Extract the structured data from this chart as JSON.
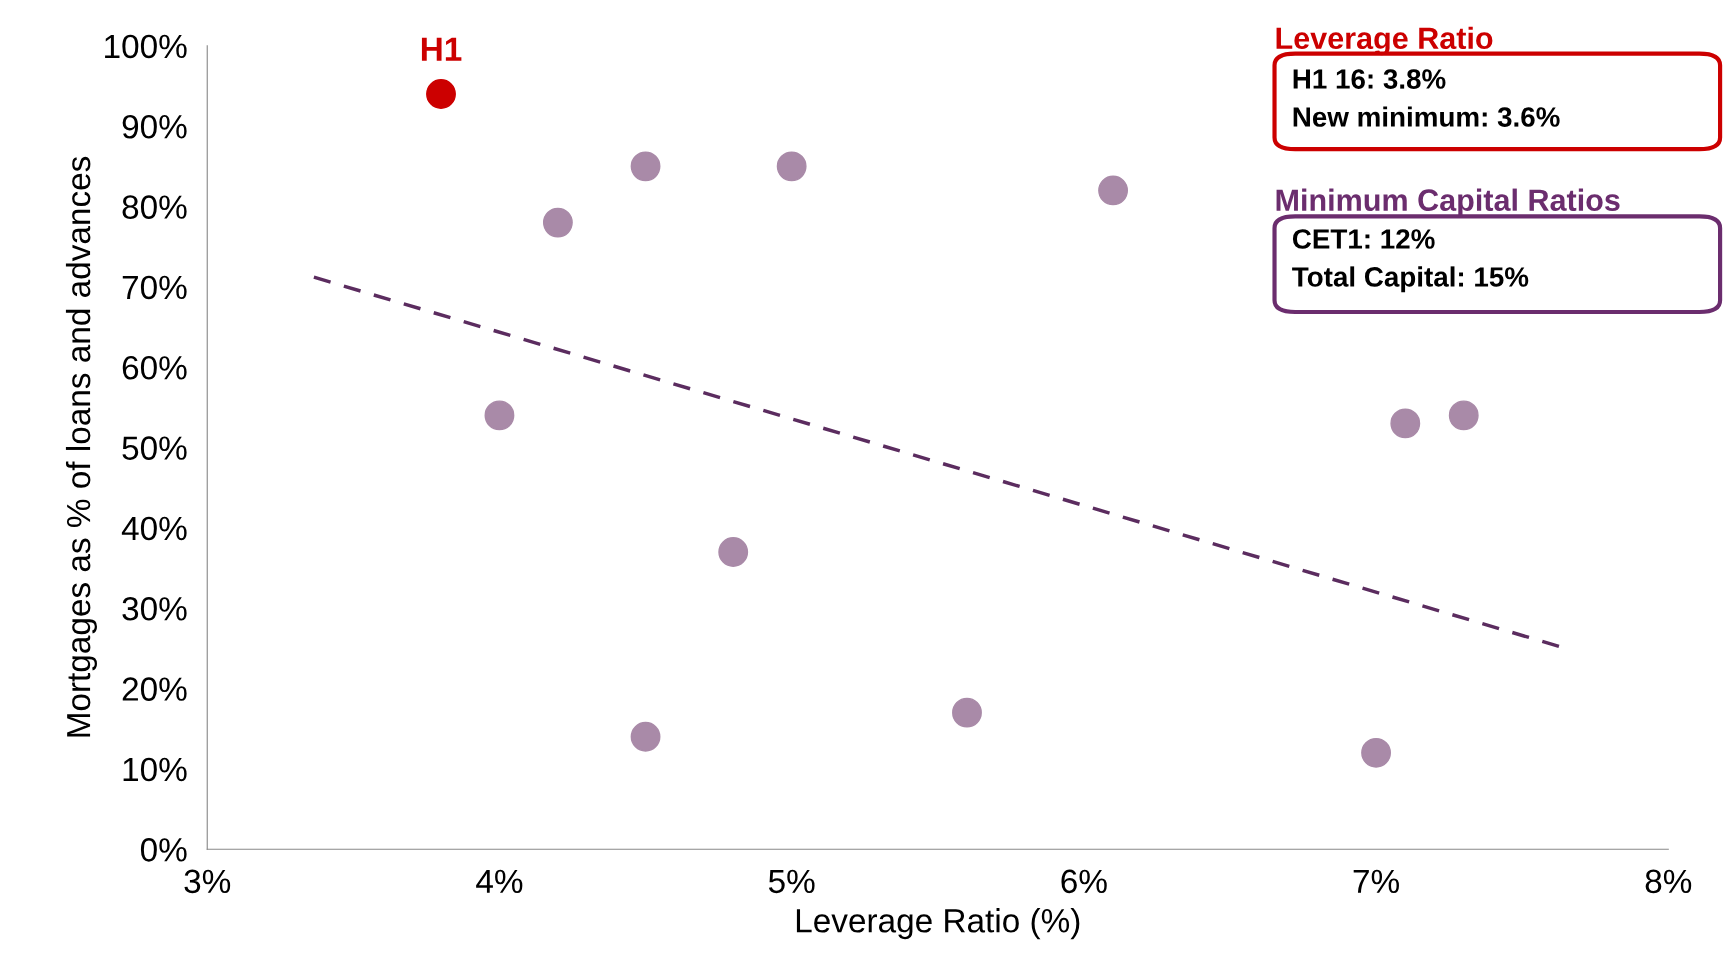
{
  "chart_data": {
    "type": "scatter",
    "xlabel": "Leverage Ratio (%)",
    "ylabel": "Mortgages as % of loans and advances",
    "xlim": [
      3,
      8
    ],
    "ylim": [
      0,
      100
    ],
    "xticks": [
      {
        "value": 3,
        "label": "3%"
      },
      {
        "value": 4,
        "label": "4%"
      },
      {
        "value": 5,
        "label": "5%"
      },
      {
        "value": 6,
        "label": "6%"
      },
      {
        "value": 7,
        "label": "7%"
      },
      {
        "value": 8,
        "label": "8%"
      }
    ],
    "yticks": [
      {
        "value": 0,
        "label": "0%"
      },
      {
        "value": 10,
        "label": "10%"
      },
      {
        "value": 20,
        "label": "20%"
      },
      {
        "value": 30,
        "label": "30%"
      },
      {
        "value": 40,
        "label": "40%"
      },
      {
        "value": 50,
        "label": "50%"
      },
      {
        "value": 60,
        "label": "60%"
      },
      {
        "value": 70,
        "label": "70%"
      },
      {
        "value": 80,
        "label": "80%"
      },
      {
        "value": 90,
        "label": "90%"
      },
      {
        "value": 100,
        "label": "100%"
      }
    ],
    "grid": false,
    "legend": false,
    "series": [
      {
        "type": "line",
        "line_style": "dashed",
        "marker": "none",
        "color": "#5b2c5f",
        "x": [
          3.365,
          7.64
        ],
        "values": [
          71.2,
          25.1
        ]
      },
      {
        "marker": "circle",
        "color": "#a98aa8",
        "x": [
          4.5,
          5.0,
          4.2,
          6.1,
          4.0,
          7.1,
          7.3,
          4.8,
          4.5,
          5.6,
          7.0
        ],
        "values": [
          85,
          85,
          78,
          82,
          54,
          53,
          54,
          37,
          14,
          17,
          12
        ]
      },
      {
        "marker": "circle",
        "color": "#cc0000",
        "x": [
          3.8
        ],
        "values": [
          94
        ]
      }
    ],
    "annotations": [
      {
        "text": "H1",
        "x": 3.8,
        "y": 94
      },
      "Leverage Ratio",
      "H1 16: 3.8%\nNew minimum: 3.6%",
      "Minimum Capital Ratios",
      "CET1: 12%\nTotal Capital: 15%"
    ]
  }
}
